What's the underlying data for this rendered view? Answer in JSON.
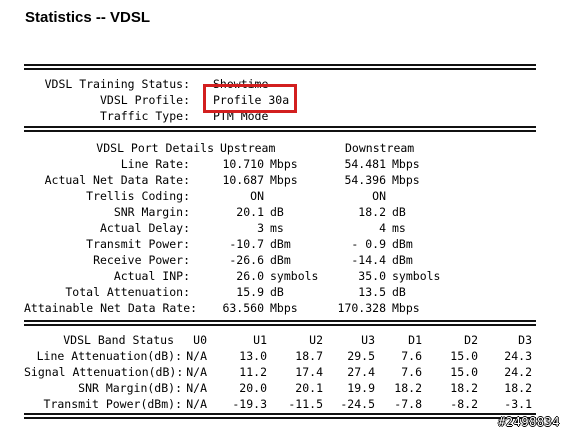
{
  "page": {
    "title": "Statistics -- VDSL"
  },
  "training": [
    {
      "label": "VDSL Training Status:",
      "value": "Showtime"
    },
    {
      "label": "VDSL Profile:",
      "value": "Profile 30a"
    },
    {
      "label": "Traffic Type:",
      "value": "PTM Mode"
    }
  ],
  "port": {
    "header": {
      "label": "VDSL Port Details",
      "up": "Upstream",
      "down": "Downstream"
    },
    "rows": [
      {
        "label": "Line Rate:",
        "up": "10.710",
        "up_unit": "Mbps",
        "down": "54.481",
        "down_unit": "Mbps"
      },
      {
        "label": "Actual Net Data Rate:",
        "up": "10.687",
        "up_unit": "Mbps",
        "down": "54.396",
        "down_unit": "Mbps"
      },
      {
        "label": "Trellis Coding:",
        "up": "ON",
        "up_unit": "",
        "down": "ON",
        "down_unit": ""
      },
      {
        "label": "SNR Margin:",
        "up": "20.1",
        "up_unit": "dB",
        "down": "18.2",
        "down_unit": "dB"
      },
      {
        "label": "Actual Delay:",
        "up": "3",
        "up_unit": "ms",
        "down": "4",
        "down_unit": "ms"
      },
      {
        "label": "Transmit Power:",
        "up": "-10.7",
        "up_unit": "dBm",
        "down": "- 0.9",
        "down_unit": "dBm"
      },
      {
        "label": "Receive Power:",
        "up": "-26.6",
        "up_unit": "dBm",
        "down": "-14.4",
        "down_unit": "dBm"
      },
      {
        "label": "Actual INP:",
        "up": "26.0",
        "up_unit": "symbols",
        "down": "35.0",
        "down_unit": "symbols"
      },
      {
        "label": "Total Attenuation:",
        "up": "15.9",
        "up_unit": "dB",
        "down": "13.5",
        "down_unit": "dB"
      },
      {
        "label": "Attainable Net Data Rate:",
        "up": "63.560",
        "up_unit": "Mbps",
        "down": "170.328",
        "down_unit": "Mbps"
      }
    ]
  },
  "band": {
    "header": {
      "label": "VDSL Band Status",
      "cols": [
        "U0",
        "U1",
        "U2",
        "U3",
        "D1",
        "D2",
        "D3"
      ]
    },
    "rows": [
      {
        "label": "Line Attenuation(dB):",
        "vals": [
          "N/A",
          "13.0",
          "18.7",
          "29.5",
          "7.6",
          "15.0",
          "24.3"
        ]
      },
      {
        "label": "Signal Attenuation(dB):",
        "vals": [
          "N/A",
          "11.2",
          "17.4",
          "27.4",
          "7.6",
          "15.0",
          "24.2"
        ]
      },
      {
        "label": "SNR Margin(dB):",
        "vals": [
          "N/A",
          "20.0",
          "20.1",
          "19.9",
          "18.2",
          "18.2",
          "18.2"
        ]
      },
      {
        "label": "Transmit Power(dBm):",
        "vals": [
          "N/A",
          "-19.3",
          "-11.5",
          "-24.5",
          "-7.8",
          "-8.2",
          "-3.1"
        ]
      }
    ]
  },
  "watermark": "#2498834",
  "colors": {
    "highlight": "#d21f1f"
  }
}
